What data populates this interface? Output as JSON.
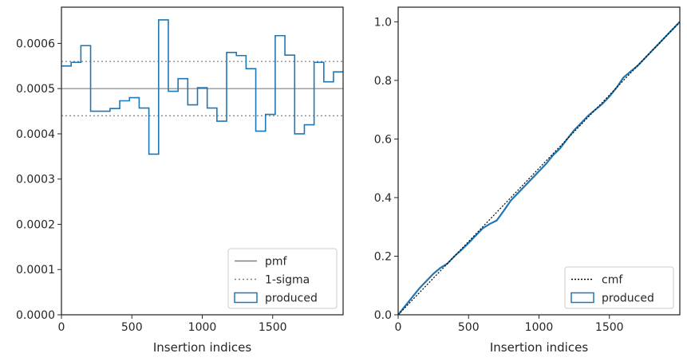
{
  "chart_data": [
    {
      "type": "line",
      "xlabel": "Insertion indices",
      "ylabel": "",
      "xlim": [
        0,
        2000
      ],
      "ylim": [
        0,
        0.00068
      ],
      "x_ticks": [
        0,
        500,
        1000,
        1500
      ],
      "x_tick_labels": [
        "0",
        "500",
        "1000",
        "1500"
      ],
      "y_ticks": [
        0,
        0.0001,
        0.0002,
        0.0003,
        0.0004,
        0.0005,
        0.0006
      ],
      "y_tick_labels": [
        "0.0000",
        "0.0001",
        "0.0002",
        "0.0003",
        "0.0004",
        "0.0005",
        "0.0006"
      ],
      "grid": false,
      "legend_position": "lower-right",
      "pmf": {
        "name": "pmf",
        "value": 0.0005,
        "color": "#808080"
      },
      "sigma": {
        "name": "1-sigma",
        "values": [
          0.00044,
          0.00056
        ],
        "color": "#808080"
      },
      "produced": {
        "name": "produced",
        "color": "#1f77b4",
        "bin_edges": [
          0,
          69,
          138,
          207,
          276,
          345,
          414,
          483,
          552,
          621,
          690,
          759,
          828,
          897,
          966,
          1035,
          1104,
          1173,
          1242,
          1311,
          1380,
          1449,
          1518,
          1587,
          1656,
          1725,
          1794,
          1863,
          1932,
          2000
        ],
        "values": [
          0.00055,
          0.000558,
          0.000595,
          0.00045,
          0.00045,
          0.000456,
          0.000473,
          0.00048,
          0.000457,
          0.000355,
          0.000652,
          0.000494,
          0.000522,
          0.000464,
          0.000502,
          0.000457,
          0.000428,
          0.00058,
          0.000573,
          0.000544,
          0.000406,
          0.000443,
          0.000617,
          0.000574,
          0.0004,
          0.00042,
          0.000558,
          0.000515,
          0.000537
        ]
      }
    },
    {
      "type": "line",
      "xlabel": "Insertion indices",
      "ylabel": "",
      "xlim": [
        0,
        2000
      ],
      "ylim": [
        0,
        1.05
      ],
      "x_ticks": [
        0,
        500,
        1000,
        1500
      ],
      "x_tick_labels": [
        "0",
        "500",
        "1000",
        "1500"
      ],
      "y_ticks": [
        0,
        0.2,
        0.4,
        0.6,
        0.8,
        1.0
      ],
      "y_tick_labels": [
        "0.0",
        "0.2",
        "0.4",
        "0.6",
        "0.8",
        "1.0"
      ],
      "grid": false,
      "legend_position": "lower-right",
      "cmf": {
        "name": "cmf",
        "x": [
          0,
          2000
        ],
        "y": [
          0,
          1.0
        ],
        "color": "#000000"
      },
      "produced": {
        "name": "produced",
        "color": "#1f77b4",
        "x": [
          0,
          50,
          100,
          150,
          200,
          250,
          300,
          350,
          400,
          450,
          500,
          550,
          600,
          650,
          700,
          750,
          800,
          850,
          900,
          950,
          1000,
          1050,
          1100,
          1150,
          1200,
          1250,
          1300,
          1350,
          1400,
          1450,
          1500,
          1550,
          1600,
          1650,
          1700,
          1750,
          1800,
          1850,
          1900,
          1950,
          2000
        ],
        "y": [
          0,
          0.03,
          0.06,
          0.09,
          0.115,
          0.14,
          0.16,
          0.175,
          0.2,
          0.222,
          0.245,
          0.27,
          0.295,
          0.31,
          0.322,
          0.355,
          0.39,
          0.415,
          0.44,
          0.465,
          0.49,
          0.515,
          0.545,
          0.568,
          0.6,
          0.63,
          0.655,
          0.68,
          0.7,
          0.72,
          0.745,
          0.775,
          0.81,
          0.83,
          0.85,
          0.875,
          0.9,
          0.925,
          0.95,
          0.975,
          1.0
        ]
      }
    }
  ]
}
